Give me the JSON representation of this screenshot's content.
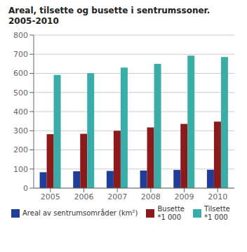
{
  "chart_data": {
    "type": "bar",
    "title": "Areal, tilsette og busette i sentrumssoner. 2005-2010",
    "categories": [
      "2005",
      "2006",
      "2007",
      "2008",
      "2009",
      "2010"
    ],
    "series": [
      {
        "name": "Areal av sentrumsområder (km²)",
        "color": "#1f3e99",
        "values": [
          83,
          88,
          90,
          92,
          95,
          96
        ]
      },
      {
        "name": "Busette\n*1 000",
        "color": "#8b1a1a",
        "values": [
          282,
          284,
          300,
          317,
          336,
          348
        ]
      },
      {
        "name": "Tilsette\n*1 000",
        "color": "#3aada8",
        "values": [
          592,
          601,
          630,
          650,
          693,
          685
        ]
      }
    ],
    "ylim": [
      0,
      800
    ],
    "yticks": [
      0,
      100,
      200,
      300,
      400,
      500,
      600,
      700,
      800
    ],
    "grid": true,
    "legend": "bottom"
  }
}
